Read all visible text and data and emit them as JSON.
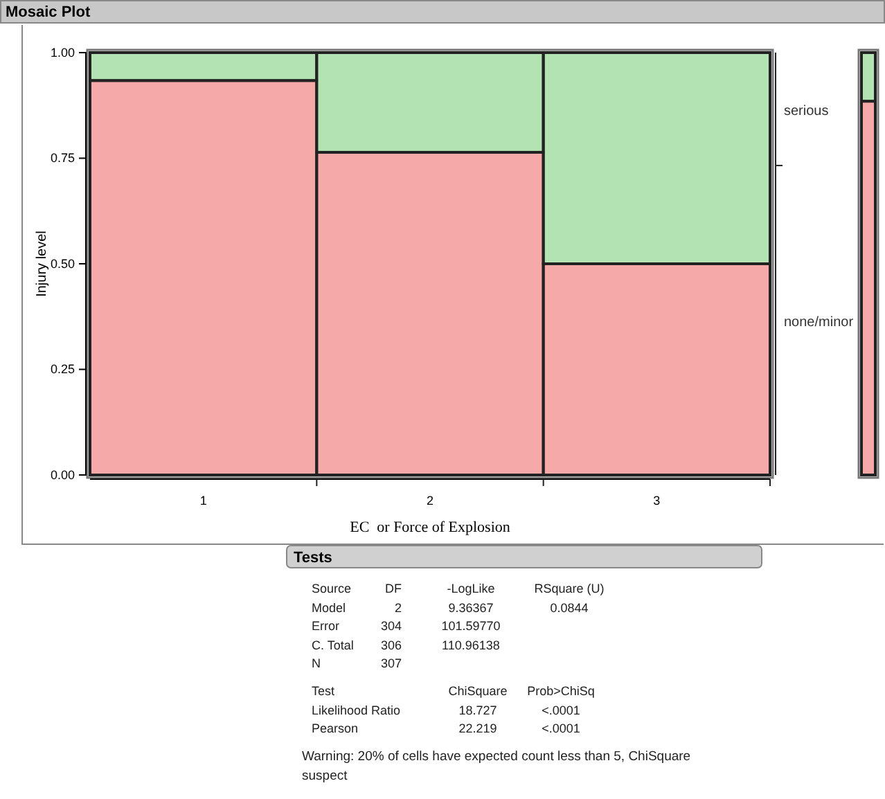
{
  "chart_data": [
    {
      "type": "bar",
      "title": "Mosaic Plot",
      "xlabel": "EC  or Force of Explosion",
      "ylabel": "Injury level",
      "stacked": true,
      "series": [
        {
          "name": "none/minor",
          "color": "#f07070",
          "values": [
            0.934,
            0.764,
            0.5
          ]
        },
        {
          "name": "serious",
          "color": "#80d080",
          "values": [
            0.066,
            0.236,
            0.5
          ]
        }
      ],
      "categories": [
        "1",
        "2",
        "3"
      ],
      "ylim": [
        0,
        1
      ],
      "yticks": [
        {
          "value": 0,
          "label": "0.00"
        },
        {
          "value": 0.25,
          "label": "0.25"
        },
        {
          "value": 0.5,
          "label": "0.50"
        },
        {
          "value": 0.75,
          "label": "0.75"
        },
        {
          "value": 1,
          "label": "1.00"
        }
      ],
      "grid": false
    },
    {
      "type": "bar",
      "stacked": true,
      "categories": [
        null
      ],
      "series": [
        {
          "color": "#f07070",
          "values": [
            0.885
          ]
        },
        {
          "color": "#80d080",
          "values": [
            0.115
          ]
        }
      ],
      "ylim": [
        0,
        1
      ]
    },
    {
      "type": "other",
      "title": "Tests",
      "annotations": [
        "Source",
        "DF",
        "-LogLike",
        "RSquare (U)",
        "Model",
        "2",
        "9.36367",
        "0.0844",
        "Error",
        "304",
        "101.59770",
        "C. Total",
        "306",
        "110.96138",
        "N",
        "307",
        "Test",
        "ChiSquare",
        "Prob>ChiSq",
        "Likelihood Ratio",
        "18.727",
        "<.0001",
        "Pearson",
        "22.219",
        "<.0001",
        "Warning: 20% of cells have expected count less than 5, ChiSquare suspect"
      ]
    }
  ]
}
